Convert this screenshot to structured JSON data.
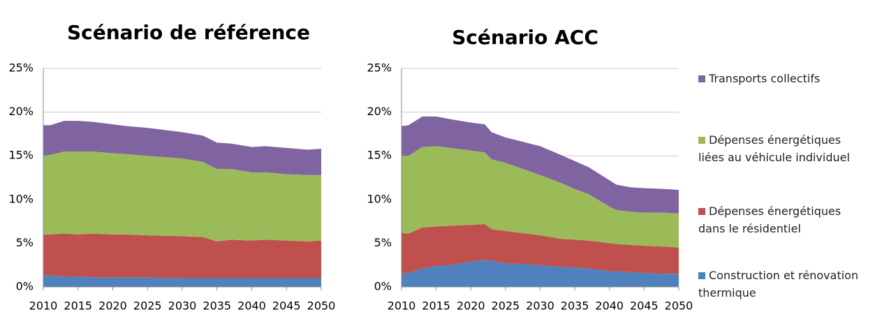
{
  "chart_data": [
    {
      "type": "stacked-area",
      "title": "Scénario de référence",
      "x": [
        2010,
        2011,
        2013,
        2015,
        2017,
        2020,
        2022,
        2025,
        2030,
        2033,
        2035,
        2037,
        2040,
        2042,
        2045,
        2048,
        2050
      ],
      "series": [
        {
          "name": "Construction et rénovation thermique",
          "color": "#4f81bd",
          "values": [
            1.4,
            1.3,
            1.2,
            1.2,
            1.1,
            1.1,
            1.1,
            1.1,
            1.0,
            1.0,
            1.0,
            1.0,
            1.0,
            1.0,
            1.0,
            1.0,
            1.0
          ]
        },
        {
          "name": "Dépenses énergétiques dans le résidentiel",
          "color": "#c0504d",
          "values": [
            4.6,
            4.7,
            4.9,
            4.8,
            5.0,
            4.9,
            4.9,
            4.8,
            4.8,
            4.7,
            4.2,
            4.4,
            4.3,
            4.4,
            4.3,
            4.2,
            4.3
          ]
        },
        {
          "name": "Dépenses énergétiques liées au véhicule individuel",
          "color": "#9bbb59",
          "values": [
            9.0,
            9.1,
            9.4,
            9.5,
            9.4,
            9.3,
            9.2,
            9.1,
            8.9,
            8.6,
            8.3,
            8.1,
            7.8,
            7.7,
            7.6,
            7.6,
            7.5
          ]
        },
        {
          "name": "Transports collectifs",
          "color": "#8064a2",
          "values": [
            3.5,
            3.4,
            3.5,
            3.5,
            3.4,
            3.3,
            3.2,
            3.2,
            3.0,
            3.0,
            3.0,
            2.9,
            2.9,
            3.0,
            3.0,
            2.9,
            3.0
          ]
        }
      ],
      "xlim": [
        2010,
        2050
      ],
      "xticks": [
        2010,
        2015,
        2020,
        2025,
        2030,
        2035,
        2040,
        2045,
        2050
      ],
      "ylim": [
        0,
        25
      ],
      "yticks": [
        {
          "value": 0,
          "label": "0%"
        },
        {
          "value": 5,
          "label": "5%"
        },
        {
          "value": 10,
          "label": "10%"
        },
        {
          "value": 15,
          "label": "15%"
        },
        {
          "value": 20,
          "label": "20%"
        },
        {
          "value": 25,
          "label": "25%"
        }
      ],
      "grid": true
    },
    {
      "type": "stacked-area",
      "title": "Scénario ACC",
      "x": [
        2010,
        2011,
        2013,
        2015,
        2017,
        2020,
        2022,
        2023,
        2025,
        2030,
        2033,
        2035,
        2037,
        2040,
        2041,
        2043,
        2045,
        2048,
        2050
      ],
      "series": [
        {
          "color": "#4f81bd",
          "values": [
            1.5,
            1.6,
            2.1,
            2.4,
            2.5,
            2.9,
            3.1,
            3.0,
            2.7,
            2.5,
            2.3,
            2.2,
            2.1,
            1.8,
            1.8,
            1.7,
            1.6,
            1.5,
            1.5
          ]
        },
        {
          "color": "#c0504d",
          "values": [
            4.7,
            4.5,
            4.7,
            4.5,
            4.5,
            4.2,
            4.1,
            3.6,
            3.7,
            3.4,
            3.2,
            3.2,
            3.2,
            3.2,
            3.1,
            3.1,
            3.1,
            3.1,
            3.0
          ]
        },
        {
          "color": "#9bbb59",
          "values": [
            8.8,
            8.9,
            9.2,
            9.2,
            8.9,
            8.5,
            8.2,
            8.0,
            7.8,
            6.9,
            6.4,
            5.8,
            5.3,
            4.2,
            3.9,
            3.8,
            3.8,
            3.9,
            3.9
          ]
        },
        {
          "color": "#8064a2",
          "values": [
            3.4,
            3.5,
            3.5,
            3.4,
            3.3,
            3.2,
            3.2,
            3.1,
            2.9,
            3.3,
            3.2,
            3.2,
            3.1,
            3.0,
            2.9,
            2.8,
            2.8,
            2.7,
            2.7
          ]
        }
      ],
      "xlim": [
        2010,
        2050
      ],
      "xticks": [
        2010,
        2015,
        2020,
        2025,
        2030,
        2035,
        2040,
        2045,
        2050
      ],
      "ylim": [
        0,
        25
      ],
      "yticks": [
        {
          "value": 0,
          "label": "0%"
        },
        {
          "value": 5,
          "label": "5%"
        },
        {
          "value": 10,
          "label": "10%"
        },
        {
          "value": 15,
          "label": "15%"
        },
        {
          "value": 20,
          "label": "20%"
        },
        {
          "value": 25,
          "label": "25%"
        }
      ],
      "grid": true
    }
  ]
}
